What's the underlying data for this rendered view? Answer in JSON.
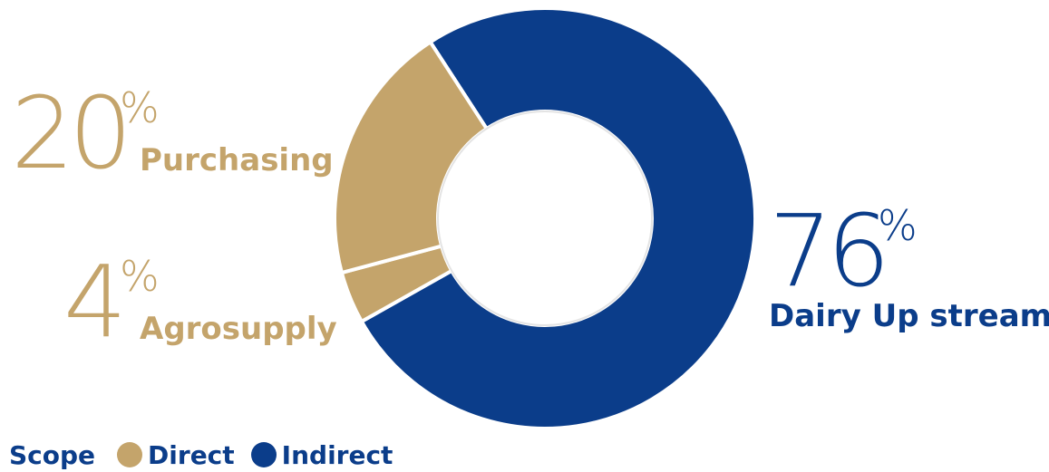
{
  "chart_data": {
    "type": "pie",
    "slices": [
      {
        "label": "Dairy Up stream",
        "value": 76,
        "scope": "Indirect",
        "color": "#0b3d8a"
      },
      {
        "label": "Agrosupply",
        "value": 4,
        "scope": "Direct",
        "color": "#c4a46b"
      },
      {
        "label": "Purchasing",
        "value": 20,
        "scope": "Direct",
        "color": "#c4a46b"
      }
    ],
    "hole": "donut",
    "percent_sign": "%"
  },
  "legend": {
    "title": "Scope",
    "items": [
      {
        "label": "Direct",
        "color": "#c4a46b"
      },
      {
        "label": "Indirect",
        "color": "#0b3d8a"
      }
    ]
  },
  "callouts": {
    "purchasing": {
      "value": "20",
      "unit": "%",
      "label": "Purchasing"
    },
    "agrosupply": {
      "value": "4",
      "unit": "%",
      "label": "Agrosupply"
    },
    "dairy": {
      "value": "76",
      "unit": "%",
      "label": "Dairy Up stream"
    }
  }
}
